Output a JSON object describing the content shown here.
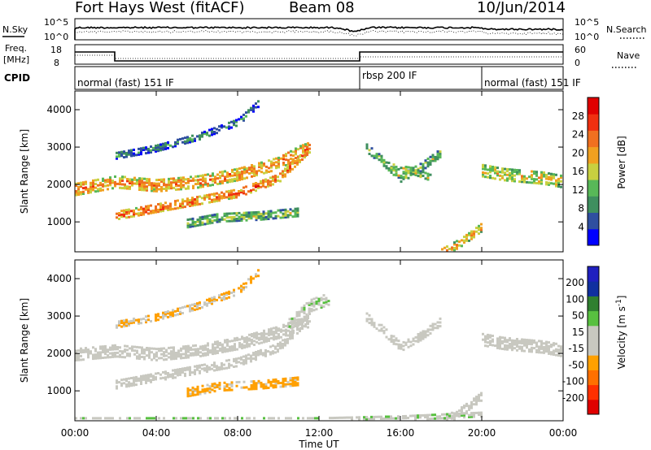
{
  "header": {
    "station": "Fort Hays West (fitACF)",
    "beam": "Beam 08",
    "date": "10/Jun/2014"
  },
  "top_panels": {
    "nsky_label": "N.Sky",
    "nsearch_label": "N.Search",
    "noise_ticks": [
      "10^5",
      "10^0"
    ],
    "freq_label_line1": "Freq.",
    "freq_label_line2": "[MHz]",
    "freq_ticks": [
      "18",
      "8"
    ],
    "nave_label": "Nave",
    "nave_ticks": [
      "60",
      "0"
    ],
    "cpid_label": "CPID",
    "cpid_segments": [
      {
        "label": "normal (fast) 151 IF",
        "start_h": 0,
        "end_h": 14
      },
      {
        "label": "rbsp 200 IF",
        "start_h": 14,
        "end_h": 20
      },
      {
        "label": "normal (fast) 151 IF",
        "start_h": 20,
        "end_h": 24
      }
    ]
  },
  "colors": {
    "power_scale": [
      "#0000ff",
      "#2f4fa0",
      "#3f8f5f",
      "#58b858",
      "#c8d040",
      "#f0a020",
      "#f07020",
      "#f03010",
      "#e00000"
    ],
    "velocity_scale": [
      "#e00000",
      "#ff3000",
      "#ff7000",
      "#ffa000",
      "#c8c8c0",
      "#c8c8c0",
      "#58c040",
      "#308030",
      "#1030a0",
      "#2020c0"
    ],
    "grey_scatter": "#c8c8c0"
  },
  "chart_data": [
    {
      "type": "heatmap",
      "title": "",
      "xlabel": "Time UT",
      "ylabel": "Slant Range [km]",
      "xlim": [
        0,
        24
      ],
      "ylim": [
        200,
        4500
      ],
      "x_ticks": [
        "00:00",
        "04:00",
        "08:00",
        "12:00",
        "16:00",
        "20:00",
        "00:00"
      ],
      "y_ticks": [
        1000,
        2000,
        3000,
        4000
      ],
      "colorbar": {
        "label": "Power [dB]",
        "ticks": [
          4,
          8,
          12,
          16,
          20,
          24,
          28
        ],
        "range": [
          0,
          32
        ]
      },
      "bands": [
        {
          "t": [
            0,
            2,
            4,
            6,
            8,
            10,
            11,
            11.5
          ],
          "r": [
            1900,
            2100,
            2000,
            2100,
            2300,
            2600,
            2900,
            3000
          ],
          "width": 300,
          "power": 22
        },
        {
          "t": [
            2,
            4,
            6,
            8,
            10,
            11.5
          ],
          "r": [
            1200,
            1400,
            1600,
            1800,
            2200,
            3000
          ],
          "width": 200,
          "power": 24
        },
        {
          "t": [
            5.5,
            7,
            9,
            11
          ],
          "r": [
            1000,
            1150,
            1200,
            1300
          ],
          "width": 220,
          "power": 14
        },
        {
          "t": [
            2,
            4,
            6,
            8,
            9
          ],
          "r": [
            2800,
            3000,
            3300,
            3700,
            4200
          ],
          "width": 150,
          "power": 10
        },
        {
          "t": [
            14.3,
            15,
            16,
            17,
            18
          ],
          "r": [
            3000,
            2700,
            2200,
            2500,
            2900
          ],
          "width": 200,
          "power": 14
        },
        {
          "t": [
            15.5,
            16.5,
            17.5
          ],
          "r": [
            2500,
            2400,
            2200
          ],
          "width": 150,
          "power": 16
        },
        {
          "t": [
            18,
            19,
            20
          ],
          "r": [
            200,
            500,
            900
          ],
          "width": 200,
          "power": 20
        },
        {
          "t": [
            20,
            21,
            22,
            23,
            24
          ],
          "r": [
            2400,
            2300,
            2250,
            2200,
            2100
          ],
          "width": 300,
          "power": 18
        }
      ]
    },
    {
      "type": "heatmap",
      "title": "",
      "xlabel": "Time UT",
      "ylabel": "Slant Range [km]",
      "xlim": [
        0,
        24
      ],
      "ylim": [
        200,
        4500
      ],
      "x_ticks": [
        "00:00",
        "04:00",
        "08:00",
        "12:00",
        "16:00",
        "20:00",
        "00:00"
      ],
      "y_ticks": [
        1000,
        2000,
        3000,
        4000
      ],
      "colorbar": {
        "label": "Velocity [m s^-1]",
        "ticks": [
          "200",
          "100",
          "50",
          "15",
          "-15",
          "-50",
          "-100",
          "-200"
        ],
        "range": [
          -250,
          250
        ]
      },
      "bands": [
        {
          "t": [
            0,
            2,
            4,
            6,
            8,
            10,
            11.5
          ],
          "r": [
            2000,
            2100,
            2000,
            2100,
            2300,
            2600,
            2900
          ],
          "width": 300,
          "velocity": 0
        },
        {
          "t": [
            2,
            4,
            6,
            8,
            10,
            11.5
          ],
          "r": [
            1200,
            1400,
            1600,
            1800,
            2200,
            3000
          ],
          "width": 200,
          "velocity": 0
        },
        {
          "t": [
            5.5,
            7,
            9,
            11
          ],
          "r": [
            1000,
            1150,
            1200,
            1300
          ],
          "width": 220,
          "velocity": -60
        },
        {
          "t": [
            2,
            4,
            6,
            8,
            9
          ],
          "r": [
            2800,
            3000,
            3300,
            3700,
            4200
          ],
          "width": 150,
          "velocity": -50
        },
        {
          "t": [
            10.5,
            11.5,
            12.5
          ],
          "r": [
            2800,
            3300,
            3500
          ],
          "width": 300,
          "velocity": 40
        },
        {
          "t": [
            14.3,
            15,
            16,
            17,
            18
          ],
          "r": [
            3000,
            2700,
            2200,
            2500,
            2900
          ],
          "width": 200,
          "velocity": 0
        },
        {
          "t": [
            18,
            19,
            20
          ],
          "r": [
            200,
            500,
            900
          ],
          "width": 200,
          "velocity": 0
        },
        {
          "t": [
            20,
            21,
            22,
            23,
            24
          ],
          "r": [
            2400,
            2300,
            2250,
            2200,
            2100
          ],
          "width": 300,
          "velocity": 0
        },
        {
          "t": [
            0,
            4,
            8,
            12,
            16,
            20
          ],
          "r": [
            250,
            250,
            250,
            250,
            300,
            400
          ],
          "width": 100,
          "velocity": 40
        }
      ]
    }
  ]
}
